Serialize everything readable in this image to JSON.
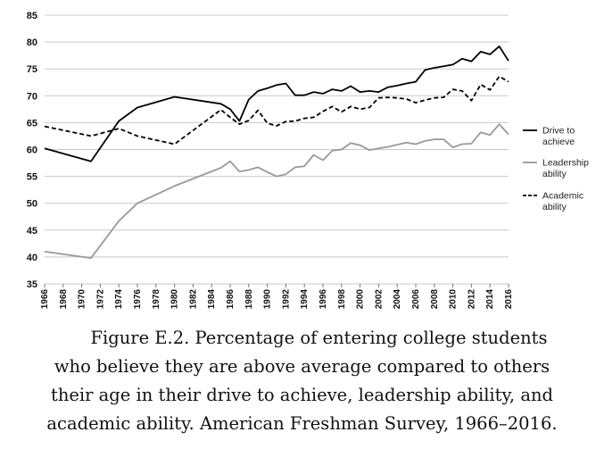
{
  "chart_data": {
    "type": "line",
    "title": "",
    "xlabel": "",
    "ylabel": "",
    "ylim": [
      35,
      85
    ],
    "y_ticks": [
      "35",
      "40",
      "45",
      "50",
      "55",
      "60",
      "65",
      "70",
      "75",
      "80",
      "85"
    ],
    "x_ticks": [
      "1966",
      "1968",
      "1970",
      "1972",
      "1974",
      "1976",
      "1978",
      "1980",
      "1982",
      "1984",
      "1986",
      "1988",
      "1990",
      "1992",
      "1994",
      "1996",
      "1998",
      "2000",
      "2002",
      "2004",
      "2006",
      "2008",
      "2010",
      "2012",
      "2014",
      "2016"
    ],
    "grid": "horizontal",
    "legend_position": "right",
    "series": [
      {
        "name": "Drive to achieve",
        "style": "solid",
        "color": "#000000",
        "x": [
          1966,
          1971,
          1974,
          1976,
          1980,
          1985,
          1986,
          1987,
          1988,
          1989,
          1990,
          1991,
          1992,
          1993,
          1994,
          1995,
          1996,
          1997,
          1998,
          1999,
          2000,
          2001,
          2002,
          2003,
          2004,
          2005,
          2006,
          2007,
          2008,
          2009,
          2010,
          2011,
          2012,
          2013,
          2014,
          2015,
          2016
        ],
        "values": [
          60.2,
          57.8,
          65.3,
          67.8,
          69.8,
          68.5,
          67.5,
          65.3,
          69.3,
          70.9,
          71.4,
          72.0,
          72.3,
          70.1,
          70.1,
          70.7,
          70.4,
          71.2,
          70.9,
          71.8,
          70.7,
          70.9,
          70.7,
          71.6,
          71.9,
          72.3,
          72.6,
          74.8,
          75.2,
          75.5,
          75.8,
          76.9,
          76.4,
          78.2,
          77.7,
          79.2,
          76.5
        ]
      },
      {
        "name": "Leadership ability",
        "style": "solid",
        "color": "#999999",
        "x": [
          1966,
          1971,
          1974,
          1976,
          1980,
          1985,
          1986,
          1987,
          1988,
          1989,
          1990,
          1991,
          1992,
          1993,
          1994,
          1995,
          1996,
          1997,
          1998,
          1999,
          2000,
          2001,
          2002,
          2003,
          2004,
          2005,
          2006,
          2007,
          2008,
          2009,
          2010,
          2011,
          2012,
          2013,
          2014,
          2015,
          2016
        ],
        "values": [
          41.0,
          39.8,
          46.7,
          50.0,
          53.2,
          56.6,
          57.8,
          55.9,
          56.2,
          56.7,
          55.8,
          55.0,
          55.4,
          56.7,
          56.9,
          59.0,
          58.0,
          59.8,
          60.0,
          61.2,
          60.8,
          59.9,
          60.2,
          60.5,
          60.9,
          61.3,
          61.0,
          61.6,
          61.9,
          61.9,
          60.4,
          61.0,
          61.1,
          63.2,
          62.7,
          64.7,
          62.8
        ]
      },
      {
        "name": "Academic ability",
        "style": "dashed",
        "color": "#000000",
        "x": [
          1966,
          1971,
          1974,
          1976,
          1980,
          1985,
          1986,
          1987,
          1988,
          1989,
          1990,
          1991,
          1992,
          1993,
          1994,
          1995,
          1996,
          1997,
          1998,
          1999,
          2000,
          2001,
          2002,
          2003,
          2004,
          2005,
          2006,
          2007,
          2008,
          2009,
          2010,
          2011,
          2012,
          2013,
          2014,
          2015,
          2016
        ],
        "values": [
          64.3,
          62.5,
          63.9,
          62.5,
          61.0,
          67.4,
          66.0,
          64.7,
          65.4,
          67.3,
          64.9,
          64.4,
          65.2,
          65.3,
          65.8,
          66.0,
          67.1,
          68.0,
          67.0,
          68.0,
          67.5,
          67.8,
          69.6,
          69.7,
          69.6,
          69.4,
          68.7,
          69.2,
          69.6,
          69.7,
          71.2,
          70.9,
          69.1,
          72.1,
          71.1,
          73.6,
          72.6
        ]
      }
    ]
  },
  "caption": {
    "lines": [
      "Figure E.2. Percentage of entering college students",
      "who believe they are above average compared to others",
      "their age in their drive to achieve, leadership ability, and",
      "academic ability. American Freshman Survey, 1966–2016."
    ]
  }
}
